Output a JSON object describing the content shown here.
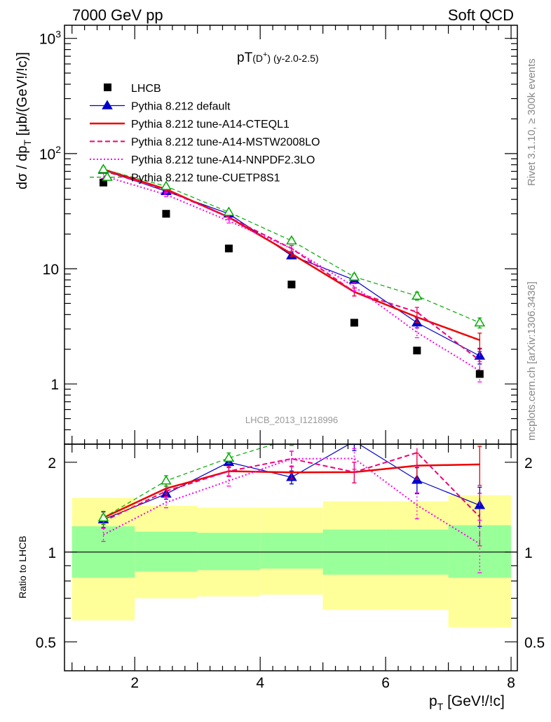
{
  "header": {
    "left": "7000 GeV pp",
    "right": "Soft QCD"
  },
  "side_labels": {
    "top": "Rivet 3.1.10, ≥ 300k events",
    "bottom": "mcplots.cern.ch [arXiv:1306.3436]"
  },
  "plot_title": {
    "main": "pT",
    "sub": "(D",
    "sup": "+",
    "close": ")",
    "tail": " (y-2.0-2.5)"
  },
  "watermark": "LHCB_2013_I1218996",
  "axes": {
    "ylabel_main": "dσ / dp",
    "ylabel_sub": "T",
    "ylabel_unit": " [μb/(GeV!/!c)]",
    "ylabel_ratio": "Ratio to LHCB",
    "xlabel_main": "p",
    "xlabel_sub": "T",
    "xlabel_unit": " [GeV!/!c]",
    "upper_ticks": [
      {
        "v": 1000,
        "base": "10",
        "exp": "3"
      },
      {
        "v": 100,
        "base": "10",
        "exp": "2"
      },
      {
        "v": 10,
        "base": "10",
        "exp": ""
      },
      {
        "v": 1,
        "base": "1",
        "exp": ""
      }
    ],
    "ratio_ticks": [
      {
        "v": 2,
        "label": "2"
      },
      {
        "v": 1,
        "label": "1"
      },
      {
        "v": 0.5,
        "label": "0.5"
      }
    ],
    "x_ticks": [
      2,
      4,
      6,
      8
    ]
  },
  "chart_data": {
    "type": "scatter",
    "title": "pT(D+) (y-2.0-2.5)",
    "xlabel": "pT [GeV!/!c]",
    "ylabel": "dσ / dpT [μb/(GeV!/!c)]",
    "ratio_ylabel": "Ratio to LHCB",
    "x_edges": [
      1,
      2,
      3,
      4,
      5,
      6,
      7,
      8
    ],
    "x": [
      1.5,
      2.5,
      3.5,
      4.5,
      5.5,
      6.5,
      7.5
    ],
    "xlim": [
      0.88,
      8.1
    ],
    "ylim": [
      0.3,
      1300
    ],
    "ylog": true,
    "ratio_ylim": [
      0.4,
      2.3
    ],
    "ratio_ylog": true,
    "data": {
      "name": "LHCB",
      "values": [
        56,
        30,
        15,
        7.3,
        3.4,
        1.95,
        1.22
      ],
      "band_inner": [
        [
          0.82,
          1.22
        ],
        [
          0.86,
          1.17
        ],
        [
          0.87,
          1.16
        ],
        [
          0.88,
          1.16
        ],
        [
          0.84,
          1.19
        ],
        [
          0.84,
          1.19
        ],
        [
          0.82,
          1.23
        ]
      ],
      "band_outer": [
        [
          0.59,
          1.52
        ],
        [
          0.7,
          1.43
        ],
        [
          0.71,
          1.41
        ],
        [
          0.72,
          1.41
        ],
        [
          0.64,
          1.48
        ],
        [
          0.64,
          1.48
        ],
        [
          0.56,
          1.55
        ]
      ]
    },
    "series": [
      {
        "name": "Pythia 8.212 default",
        "color": "#0000cc",
        "style": "solid",
        "width": 1.2,
        "marker": "triangle-filled",
        "values": [
          72,
          47,
          30,
          13,
          8,
          3.4,
          1.75
        ],
        "err": [
          0.06,
          0.04,
          0.04,
          0.05,
          0.07,
          0.1,
          0.15
        ]
      },
      {
        "name": "Pythia 8.212 tune-A14-CTEQL1",
        "color": "#ee0000",
        "style": "solid",
        "width": 2.5,
        "marker": "none",
        "values": [
          73,
          49,
          28,
          13.5,
          6.3,
          3.8,
          2.4
        ],
        "err": [
          0.05,
          0.04,
          0.04,
          0.05,
          0.08,
          0.1,
          0.15
        ]
      },
      {
        "name": "Pythia 8.212 tune-A14-MSTW2008LO",
        "color": "#ee0077",
        "style": "dashed",
        "width": 2,
        "marker": "none",
        "values": [
          71,
          48,
          28,
          15,
          6.3,
          4.2,
          1.6
        ],
        "err": [
          0.05,
          0.04,
          0.04,
          0.06,
          0.08,
          0.1,
          0.2
        ]
      },
      {
        "name": "Pythia 8.212 tune-A14-NNPDF2.3LO",
        "color": "#ff00ee",
        "style": "dotted",
        "width": 2,
        "marker": "none",
        "values": [
          64,
          44,
          26,
          15,
          7,
          2.8,
          1.3
        ],
        "err": [
          0.05,
          0.04,
          0.04,
          0.06,
          0.08,
          0.1,
          0.2
        ]
      },
      {
        "name": "Pythia 8.212 tune-CUETP8S1",
        "color": "#00aa00",
        "style": "dashed-thin",
        "width": 1.2,
        "marker": "triangle-open",
        "values": [
          73,
          52,
          31,
          17.5,
          8.5,
          5.8,
          3.4
        ],
        "err": [
          0.05,
          0.04,
          0.04,
          0.05,
          0.06,
          0.08,
          0.1
        ]
      }
    ]
  }
}
